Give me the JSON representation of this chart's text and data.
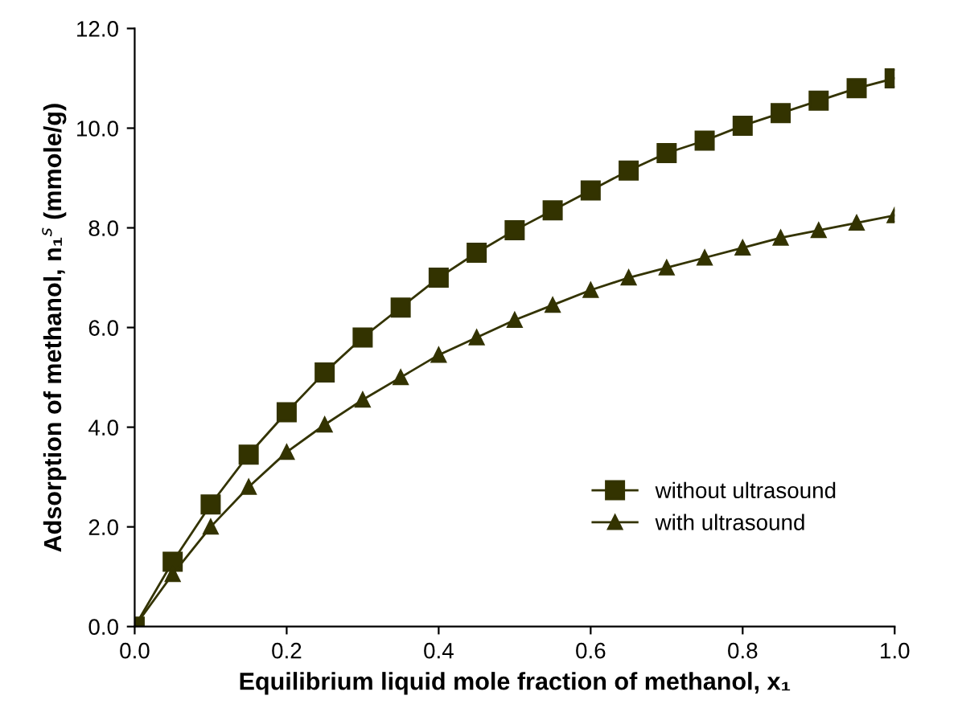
{
  "chart_data": {
    "type": "line",
    "xlabel": "Equilibrium liquid mole fraction of methanol, x₁",
    "ylabel": "Adsorption of methanol, n₁$^{s}$ (mmole/g)",
    "x": [
      0,
      0.05,
      0.1,
      0.15,
      0.2,
      0.25,
      0.3,
      0.35,
      0.4,
      0.45,
      0.5,
      0.55,
      0.6,
      0.65,
      0.7,
      0.75,
      0.8,
      0.85,
      0.9,
      0.95,
      1.0
    ],
    "series": [
      {
        "name": "without ultrasound",
        "color": "#333300",
        "marker": "square",
        "values": [
          0,
          1.3,
          2.45,
          3.45,
          4.3,
          5.1,
          5.8,
          6.4,
          7.0,
          7.5,
          7.95,
          8.35,
          8.75,
          9.15,
          9.5,
          9.75,
          10.05,
          10.3,
          10.55,
          10.8,
          11.0
        ]
      },
      {
        "name": "with ultrasound",
        "color": "#333300",
        "marker": "triangle",
        "values": [
          0,
          1.05,
          2.0,
          2.8,
          3.5,
          4.05,
          4.55,
          5.0,
          5.45,
          5.8,
          6.15,
          6.45,
          6.75,
          7.0,
          7.2,
          7.4,
          7.6,
          7.8,
          7.95,
          8.1,
          8.25
        ]
      }
    ],
    "xlim": [
      0,
      1.0
    ],
    "xticks": [
      {
        "value": 0,
        "label": "0.0"
      },
      0.2,
      0.4,
      0.6,
      0.8,
      {
        "value": 1.0,
        "label": "1.0"
      }
    ],
    "ylim": [
      0,
      12
    ],
    "yticks": [
      {
        "value": 0,
        "label": "0.0"
      },
      {
        "value": 2,
        "label": "2.0"
      },
      {
        "value": 4,
        "label": "4.0"
      },
      {
        "value": 6,
        "label": "6.0"
      },
      {
        "value": 8,
        "label": "8.0"
      },
      {
        "value": 10,
        "label": "10.0"
      },
      {
        "value": 12,
        "label": "12.0"
      }
    ],
    "grid": false,
    "legend": "lower right",
    "line_style": "solid"
  }
}
